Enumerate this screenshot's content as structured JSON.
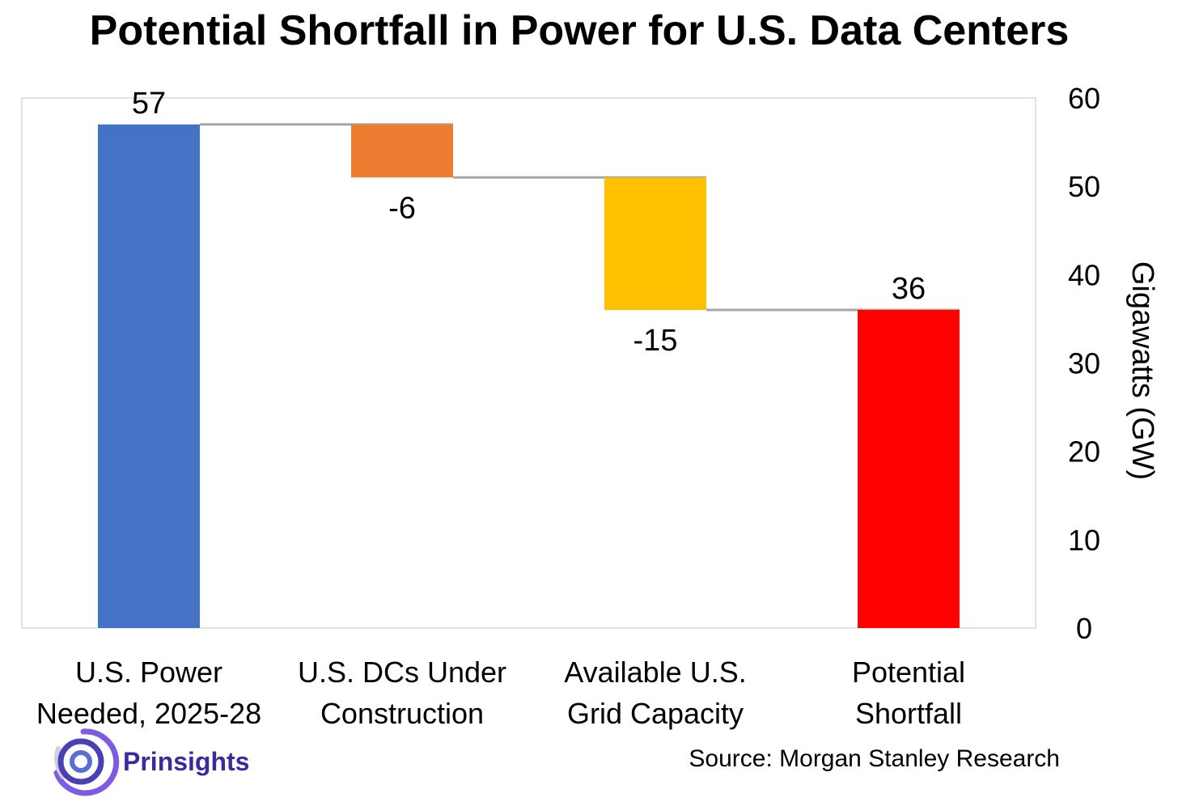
{
  "chart_data": {
    "type": "bar",
    "subtype": "waterfall",
    "title": "Potential Shortfall in Power for U.S. Data Centers",
    "ylabel": "Gigawatts (GW)",
    "ylim": [
      0,
      60
    ],
    "yticks": [
      0,
      10,
      20,
      30,
      40,
      50,
      60
    ],
    "y_axis_side": "right",
    "grid": false,
    "legend": "none",
    "categories": [
      [
        "U.S. Power",
        "Needed, 2025-28"
      ],
      [
        "U.S. DCs Under",
        "Construction"
      ],
      [
        "Available U.S.",
        "Grid Capacity"
      ],
      [
        "Potential",
        "Shortfall"
      ]
    ],
    "values": [
      57,
      -6,
      -15,
      36
    ],
    "data_labels": [
      "57",
      "-6",
      "-15",
      "36"
    ],
    "kinds": [
      "total",
      "delta",
      "delta",
      "total"
    ],
    "colors": [
      "#4472c4",
      "#ed7d31",
      "#ffc000",
      "#ff0000"
    ],
    "connector_color": "#a6a6a6"
  },
  "source": "Source: Morgan Stanley Research",
  "brand": {
    "name": "Prinsights",
    "logo_icon": "concentric-circles-logo-icon"
  }
}
